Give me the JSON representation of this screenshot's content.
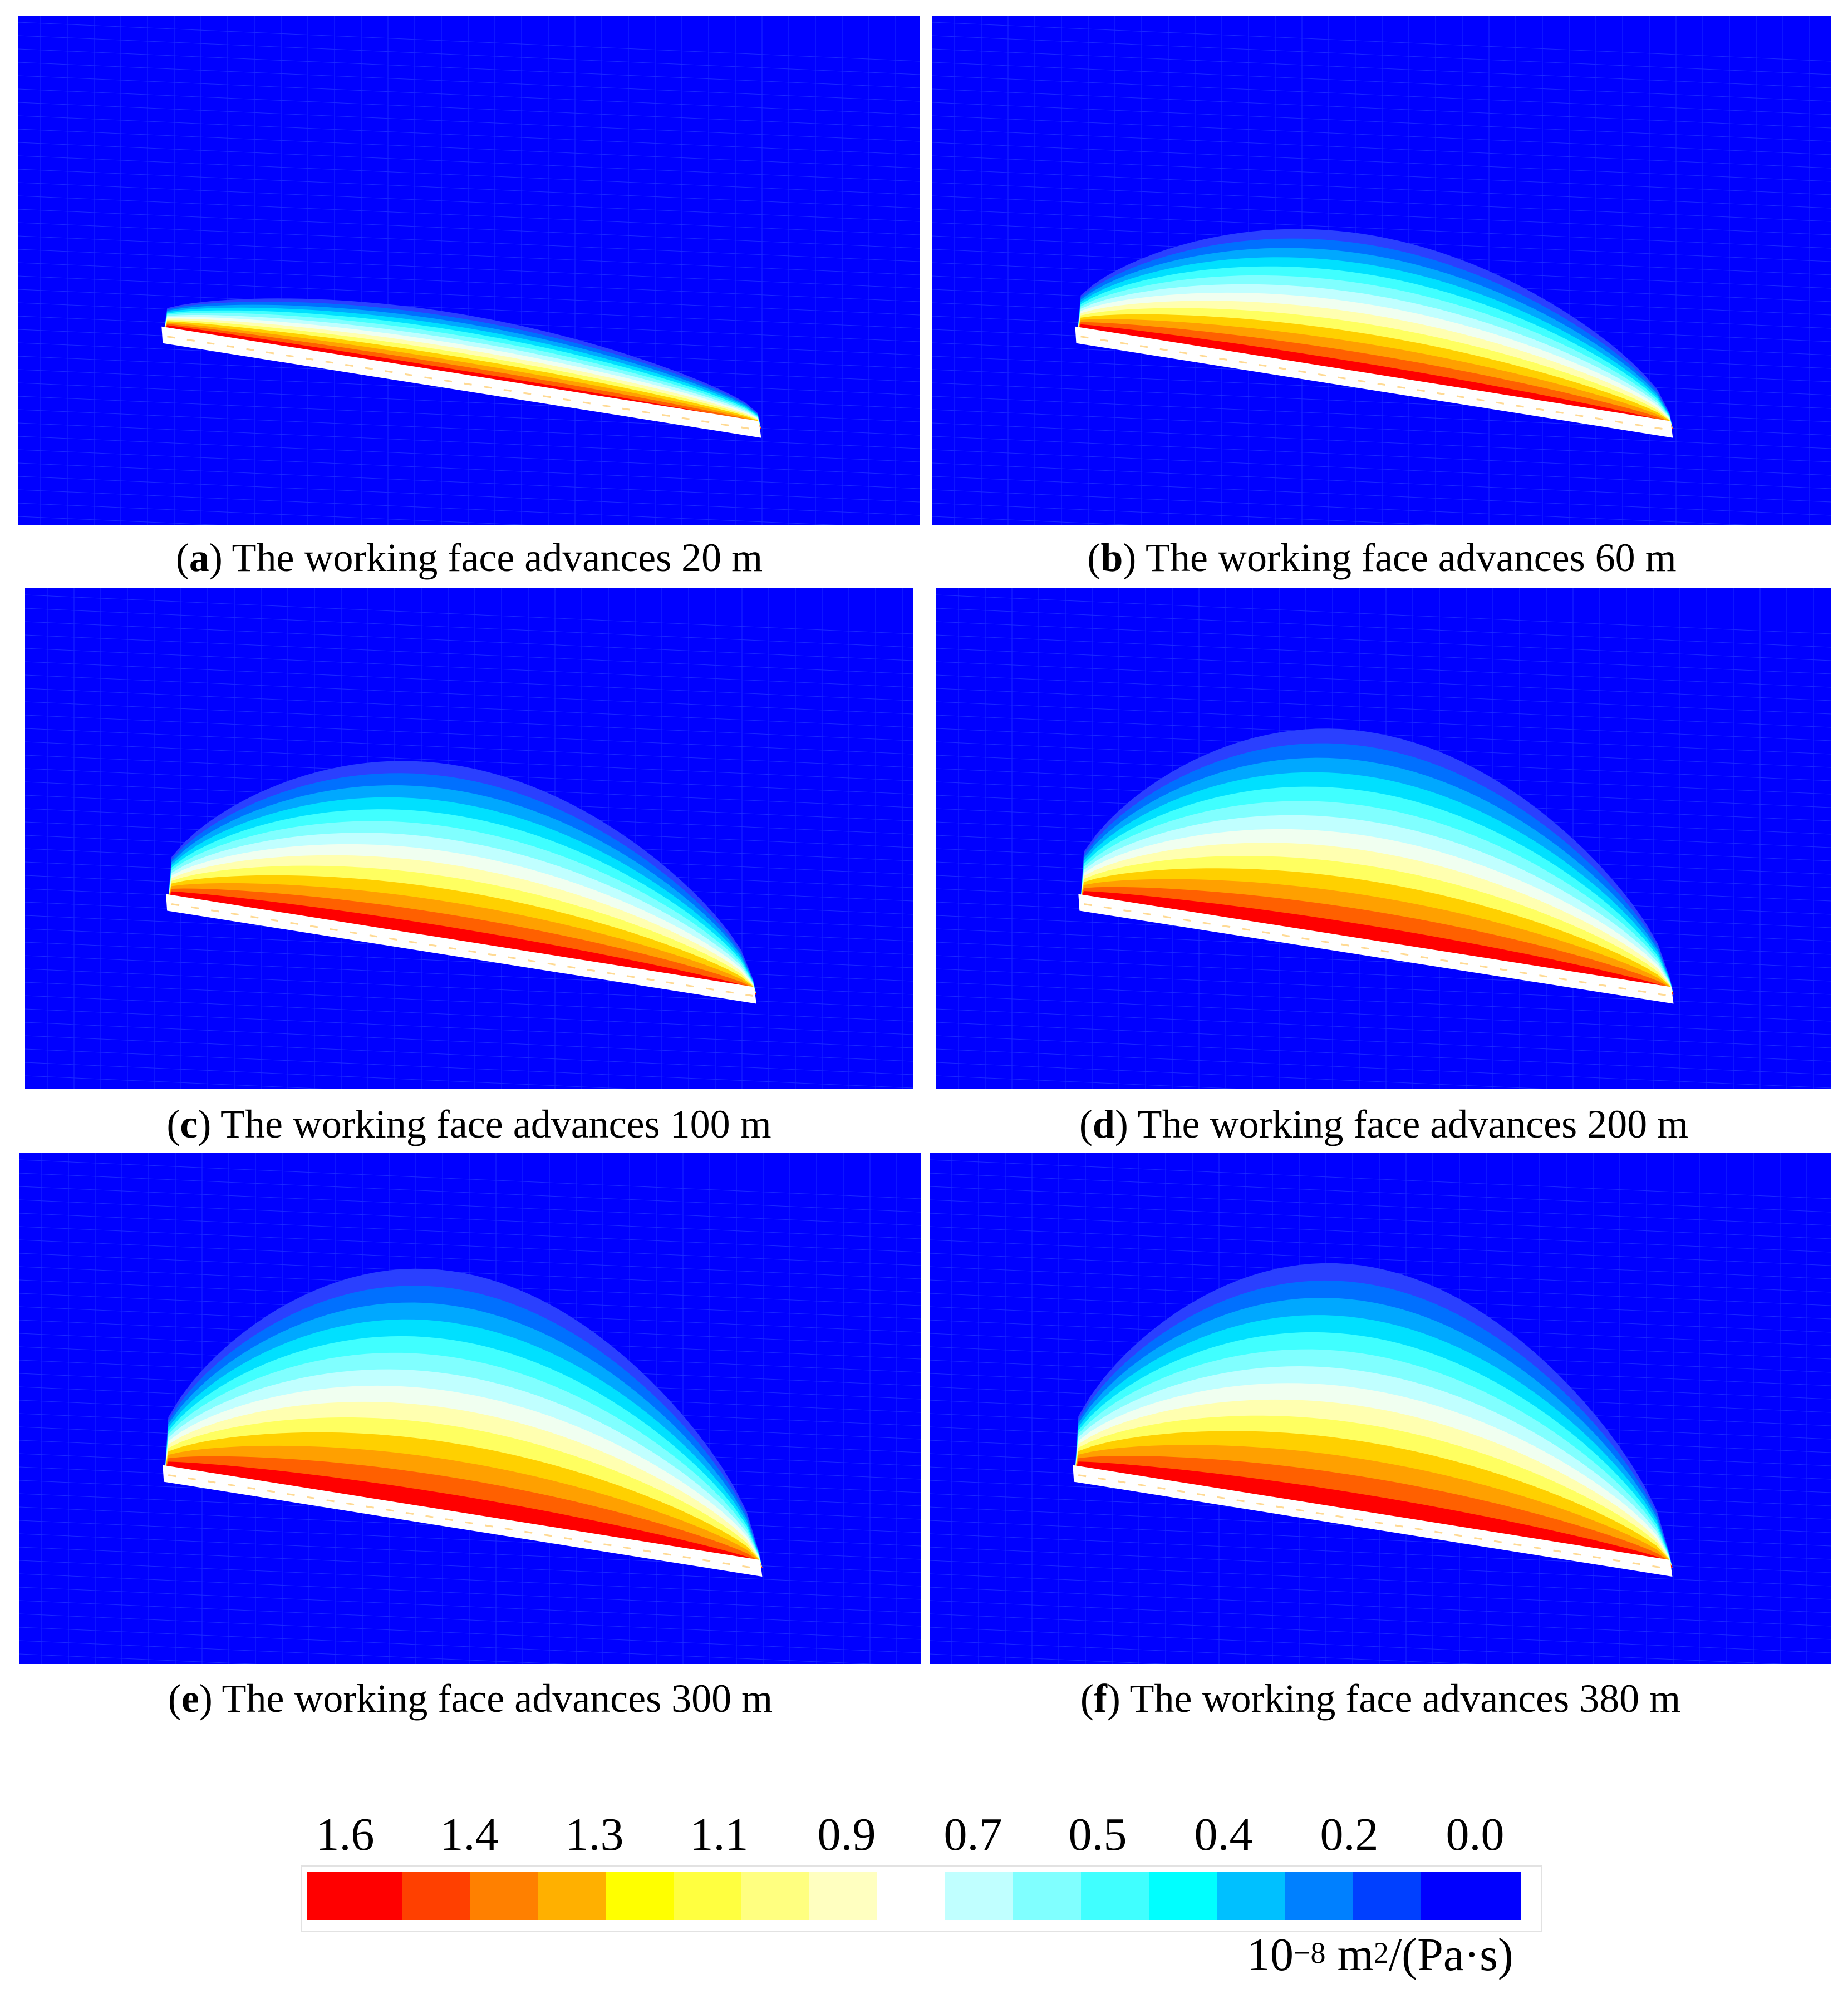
{
  "colors": {
    "background": "#0000ff",
    "goaf": "#ffffff",
    "contour_scale": [
      "#ff0000",
      "#ff4000",
      "#ff8000",
      "#ffb000",
      "#ffff00",
      "#ffff40",
      "#ffff80",
      "#ffffc0",
      "#ffffff",
      "#c0ffff",
      "#80ffff",
      "#40ffff",
      "#00ffff",
      "#00c0ff",
      "#0080ff",
      "#0040ff",
      "#0000ff"
    ]
  },
  "chart_data": {
    "type": "heatmap",
    "panels": [
      {
        "letter": "a",
        "text": "The working face advances 20 m",
        "advance_m": 20
      },
      {
        "letter": "b",
        "text": "The working face advances 60 m",
        "advance_m": 60
      },
      {
        "letter": "c",
        "text": "The working face advances 100 m",
        "advance_m": 100
      },
      {
        "letter": "d",
        "text": "The working face advances 200 m",
        "advance_m": 200
      },
      {
        "letter": "e",
        "text": "The working face advances 300 m",
        "advance_m": 300
      },
      {
        "letter": "f",
        "text": "The working face advances 380 m",
        "advance_m": 380
      }
    ],
    "colorbar": {
      "tick_labels": [
        "1.6",
        "1.4",
        "1.3",
        "1.1",
        "0.9",
        "0.7",
        "0.5",
        "0.4",
        "0.2",
        "0.0"
      ],
      "unit_base": "10",
      "unit_exp": "−8",
      "unit_m": " m",
      "unit_m_exp": "2",
      "unit_tail": "/(Pa·s)"
    }
  }
}
